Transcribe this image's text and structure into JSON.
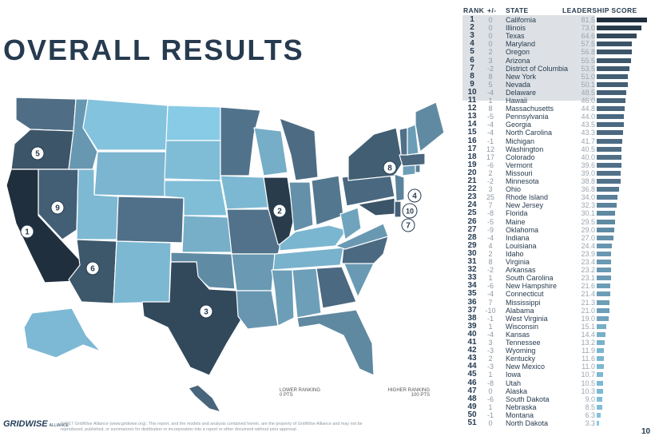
{
  "title": "OVERALL RESULTS",
  "table_headers": {
    "rank": "RANK",
    "change": "+/-",
    "state": "STATE",
    "score": "LEADERSHIP SCORE"
  },
  "legend": {
    "low": "LOWER RANKING",
    "high": "HIGHER RANKING",
    "min": "0 PTS",
    "max": "100 PTS"
  },
  "logo": {
    "text": "GRIDWISE",
    "sub": "ALLIANCE"
  },
  "copyright": "©2017 GridWise Alliance (www.gridwise.org). This report, and the models and analysis contained herein, are the property of GridWise Alliance and may not be reproduced, published, or summarizes for distribution or incorporation into a report or other document without prior approval.",
  "page_number": "10",
  "top10_highlight": 10,
  "colors": {
    "low": "#8dd3ee",
    "mid": "#4e6d85",
    "high": "#1e2e3c",
    "top10_bg": "#dde1e5"
  },
  "rankings": [
    {
      "rank": "1",
      "change": "0",
      "state": "California",
      "score": "81.5"
    },
    {
      "rank": "2",
      "change": "0",
      "state": "Illinois",
      "score": "73.0"
    },
    {
      "rank": "3",
      "change": "0",
      "state": "Texas",
      "score": "64.6"
    },
    {
      "rank": "4",
      "change": "0",
      "state": "Maryland",
      "score": "57.5"
    },
    {
      "rank": "5",
      "change": "2",
      "state": "Oregon",
      "score": "56.8"
    },
    {
      "rank": "6",
      "change": "3",
      "state": "Arizona",
      "score": "55.5"
    },
    {
      "rank": "7",
      "change": "-2",
      "state": "District of Columbia",
      "score": "53.5"
    },
    {
      "rank": "8",
      "change": "8",
      "state": "New York",
      "score": "51.0"
    },
    {
      "rank": "9",
      "change": "5",
      "state": "Nevada",
      "score": "50.1"
    },
    {
      "rank": "10",
      "change": "-4",
      "state": "Delaware",
      "score": "48.5"
    },
    {
      "rank": "11",
      "change": "1",
      "state": "Hawaii",
      "score": "46.0"
    },
    {
      "rank": "12",
      "change": "8",
      "state": "Massachusetts",
      "score": "44.8"
    },
    {
      "rank": "13",
      "change": "-5",
      "state": "Pennsylvania",
      "score": "44.0"
    },
    {
      "rank": "14",
      "change": "-4",
      "state": "Georgia",
      "score": "43.5"
    },
    {
      "rank": "15",
      "change": "-4",
      "state": "North Carolina",
      "score": "43.3"
    },
    {
      "rank": "16",
      "change": "-1",
      "state": "Michigan",
      "score": "41.7"
    },
    {
      "rank": "17",
      "change": "12",
      "state": "Washington",
      "score": "40.5"
    },
    {
      "rank": "18",
      "change": "17",
      "state": "Colorado",
      "score": "40.0"
    },
    {
      "rank": "19",
      "change": "-6",
      "state": "Vermont",
      "score": "39.6"
    },
    {
      "rank": "20",
      "change": "2",
      "state": "Missouri",
      "score": "39.0"
    },
    {
      "rank": "21",
      "change": "-2",
      "state": "Minnesota",
      "score": "38.8"
    },
    {
      "rank": "22",
      "change": "3",
      "state": "Ohio",
      "score": "36.8"
    },
    {
      "rank": "23",
      "change": "25",
      "state": "Rhode Island",
      "score": "34.0"
    },
    {
      "rank": "24",
      "change": "7",
      "state": "New Jersey",
      "score": "32.3"
    },
    {
      "rank": "25",
      "change": "-8",
      "state": "Florida",
      "score": "30.1"
    },
    {
      "rank": "26",
      "change": "-5",
      "state": "Maine",
      "score": "29.5"
    },
    {
      "rank": "27",
      "change": "-9",
      "state": "Oklahoma",
      "score": "29.0"
    },
    {
      "rank": "28",
      "change": "-4",
      "state": "Indiana",
      "score": "27.0"
    },
    {
      "rank": "29",
      "change": "4",
      "state": "Louisiana",
      "score": "24.4"
    },
    {
      "rank": "30",
      "change": "2",
      "state": "Idaho",
      "score": "23.9"
    },
    {
      "rank": "31",
      "change": "8",
      "state": "Virginia",
      "score": "23.4"
    },
    {
      "rank": "32",
      "change": "-2",
      "state": "Arkansas",
      "score": "23.2"
    },
    {
      "rank": "33",
      "change": "1",
      "state": "South Carolina",
      "score": "23.1"
    },
    {
      "rank": "34",
      "change": "-6",
      "state": "New Hampshire",
      "score": "21.6"
    },
    {
      "rank": "35",
      "change": "-4",
      "state": "Connecticut",
      "score": "21.4"
    },
    {
      "rank": "36",
      "change": "7",
      "state": "Mississippi",
      "score": "21.3"
    },
    {
      "rank": "37",
      "change": "-10",
      "state": "Alabama",
      "score": "21.0"
    },
    {
      "rank": "38",
      "change": "-1",
      "state": "West Virginia",
      "score": "19.0"
    },
    {
      "rank": "39",
      "change": "1",
      "state": "Wisconsin",
      "score": "15.1"
    },
    {
      "rank": "40",
      "change": "-4",
      "state": "Kansas",
      "score": "14.4"
    },
    {
      "rank": "41",
      "change": "3",
      "state": "Tennessee",
      "score": "13.2"
    },
    {
      "rank": "42",
      "change": "-3",
      "state": "Wyoming",
      "score": "11.9"
    },
    {
      "rank": "43",
      "change": "2",
      "state": "Kentucky",
      "score": "11.6"
    },
    {
      "rank": "44",
      "change": "-3",
      "state": "New Mexico",
      "score": "11.0"
    },
    {
      "rank": "45",
      "change": "1",
      "state": "Iowa",
      "score": "10.7"
    },
    {
      "rank": "46",
      "change": "-8",
      "state": "Utah",
      "score": "10.5"
    },
    {
      "rank": "47",
      "change": "0",
      "state": "Alaska",
      "score": "10.3"
    },
    {
      "rank": "48",
      "change": "-6",
      "state": "South Dakota",
      "score": "9.0"
    },
    {
      "rank": "49",
      "change": "1",
      "state": "Nebraska",
      "score": "8.5"
    },
    {
      "rank": "50",
      "change": "-1",
      "state": "Montana",
      "score": "6.3"
    },
    {
      "rank": "51",
      "change": "0",
      "state": "North Dakota",
      "score": "3.3"
    }
  ],
  "map_markers": [
    {
      "label": "1",
      "state": "California"
    },
    {
      "label": "2",
      "state": "Illinois"
    },
    {
      "label": "3",
      "state": "Texas"
    },
    {
      "label": "4",
      "state": "Maryland"
    },
    {
      "label": "5",
      "state": "Oregon"
    },
    {
      "label": "6",
      "state": "Arizona"
    },
    {
      "label": "7",
      "state": "District of Columbia"
    },
    {
      "label": "8",
      "state": "New York"
    },
    {
      "label": "9",
      "state": "Nevada"
    },
    {
      "label": "10",
      "state": "Delaware"
    }
  ]
}
